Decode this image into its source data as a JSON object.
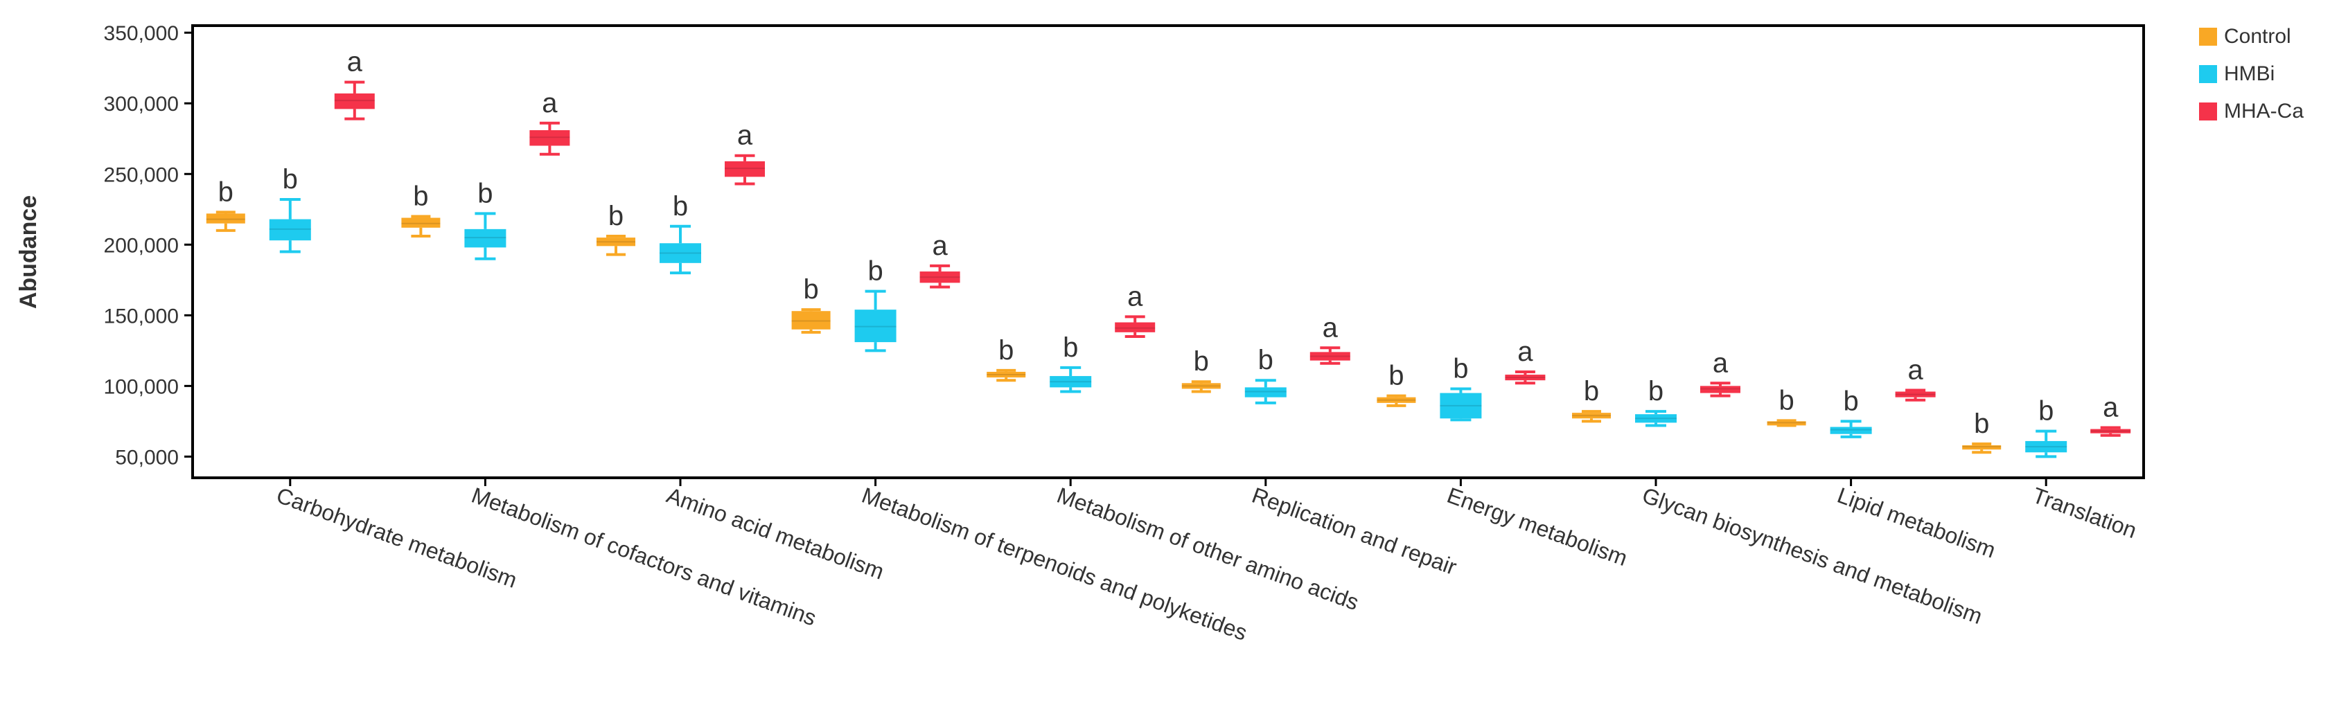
{
  "chart_data": {
    "type": "box",
    "title": "",
    "xlabel": "",
    "ylabel": "Abudance",
    "ylim": [
      35000,
      355000
    ],
    "yticks": [
      50000,
      100000,
      150000,
      200000,
      250000,
      300000,
      350000
    ],
    "ytick_labels": [
      "50,000",
      "100,000",
      "150,000",
      "200,000",
      "250,000",
      "300,000",
      "350,000"
    ],
    "grid": false,
    "legend_position": "top-right",
    "categories": [
      "Carbohydrate metabolism",
      "Metabolism of cofactors and vitamins",
      "Amino acid metabolism",
      "Metabolism of terpenoids and polyketides",
      "Metabolism of other amino acids",
      "Replication and repair",
      "Energy metabolism",
      "Glycan biosynthesis and metabolism",
      "Lipid metabolism",
      "Translation"
    ],
    "series": [
      {
        "name": "Control",
        "color": "#F9A825",
        "boxes": [
          {
            "min": 210000,
            "q1": 215000,
            "median": 218000,
            "q3": 222000,
            "max": 223000,
            "letter": "b"
          },
          {
            "min": 206000,
            "q1": 212000,
            "median": 215000,
            "q3": 219000,
            "max": 220000,
            "letter": "b"
          },
          {
            "min": 193000,
            "q1": 199000,
            "median": 202000,
            "q3": 205000,
            "max": 206000,
            "letter": "b"
          },
          {
            "min": 138000,
            "q1": 140000,
            "median": 146000,
            "q3": 153000,
            "max": 154000,
            "letter": "b"
          },
          {
            "min": 104000,
            "q1": 106000,
            "median": 108000,
            "q3": 110000,
            "max": 111000,
            "letter": "b"
          },
          {
            "min": 96000,
            "q1": 98000,
            "median": 100000,
            "q3": 102000,
            "max": 103000,
            "letter": "b"
          },
          {
            "min": 86000,
            "q1": 88000,
            "median": 90000,
            "q3": 92000,
            "max": 93000,
            "letter": "b"
          },
          {
            "min": 75000,
            "q1": 77000,
            "median": 79000,
            "q3": 81000,
            "max": 82000,
            "letter": "b"
          },
          {
            "min": 72000,
            "q1": 73000,
            "median": 74000,
            "q3": 75000,
            "max": 75500,
            "letter": "b"
          },
          {
            "min": 53000,
            "q1": 55000,
            "median": 57000,
            "q3": 58000,
            "max": 59000,
            "letter": "b"
          }
        ]
      },
      {
        "name": "HMBi",
        "color": "#1ECBEF",
        "boxes": [
          {
            "min": 195000,
            "q1": 203000,
            "median": 211000,
            "q3": 218000,
            "max": 232000,
            "letter": "b"
          },
          {
            "min": 190000,
            "q1": 198000,
            "median": 205000,
            "q3": 211000,
            "max": 222000,
            "letter": "b"
          },
          {
            "min": 180000,
            "q1": 187000,
            "median": 194000,
            "q3": 201000,
            "max": 213000,
            "letter": "b"
          },
          {
            "min": 125000,
            "q1": 131000,
            "median": 142000,
            "q3": 154000,
            "max": 167000,
            "letter": "b"
          },
          {
            "min": 96000,
            "q1": 99000,
            "median": 103000,
            "q3": 107000,
            "max": 113000,
            "letter": "b"
          },
          {
            "min": 88000,
            "q1": 92000,
            "median": 96000,
            "q3": 99000,
            "max": 104000,
            "letter": "b"
          },
          {
            "min": 76000,
            "q1": 77000,
            "median": 86000,
            "q3": 95000,
            "max": 98000,
            "letter": "b"
          },
          {
            "min": 72000,
            "q1": 74000,
            "median": 77000,
            "q3": 80000,
            "max": 82000,
            "letter": "b"
          },
          {
            "min": 64000,
            "q1": 66000,
            "median": 69000,
            "q3": 71000,
            "max": 75000,
            "letter": "b"
          },
          {
            "min": 50000,
            "q1": 53000,
            "median": 57000,
            "q3": 61000,
            "max": 68000,
            "letter": "b"
          }
        ]
      },
      {
        "name": "MHA-Ca",
        "color": "#F5334A",
        "boxes": [
          {
            "min": 289000,
            "q1": 296000,
            "median": 302000,
            "q3": 307000,
            "max": 315000,
            "letter": "a"
          },
          {
            "min": 264000,
            "q1": 270000,
            "median": 276000,
            "q3": 281000,
            "max": 286000,
            "letter": "a"
          },
          {
            "min": 243000,
            "q1": 248000,
            "median": 254000,
            "q3": 259000,
            "max": 263000,
            "letter": "a"
          },
          {
            "min": 170000,
            "q1": 173000,
            "median": 177000,
            "q3": 181000,
            "max": 185000,
            "letter": "a"
          },
          {
            "min": 135000,
            "q1": 138000,
            "median": 141000,
            "q3": 145000,
            "max": 149000,
            "letter": "a"
          },
          {
            "min": 116000,
            "q1": 118000,
            "median": 121000,
            "q3": 124000,
            "max": 127000,
            "letter": "a"
          },
          {
            "min": 102000,
            "q1": 104000,
            "median": 106000,
            "q3": 108000,
            "max": 110000,
            "letter": "a"
          },
          {
            "min": 93000,
            "q1": 95000,
            "median": 98000,
            "q3": 100000,
            "max": 102000,
            "letter": "a"
          },
          {
            "min": 90000,
            "q1": 92000,
            "median": 94000,
            "q3": 96000,
            "max": 97000,
            "letter": "a"
          },
          {
            "min": 65000,
            "q1": 66500,
            "median": 68000,
            "q3": 69500,
            "max": 70500,
            "letter": "a"
          }
        ]
      }
    ]
  }
}
